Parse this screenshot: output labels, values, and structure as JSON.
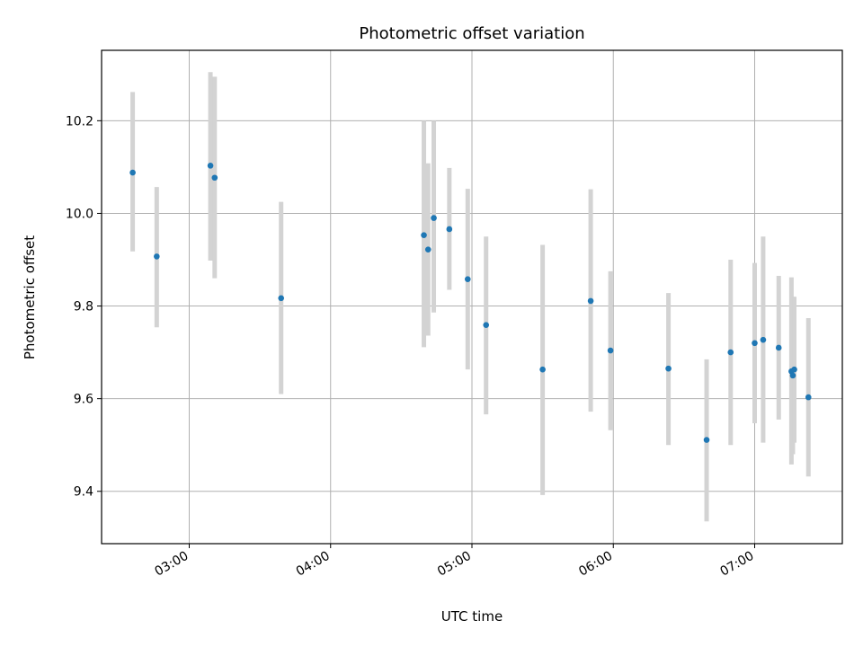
{
  "chart_data": {
    "type": "scatter",
    "title": "Photometric offset variation",
    "xlabel": "UTC time",
    "ylabel": "Photometric offset",
    "x_unit": "hours (UTC)",
    "xlim": [
      2.38,
      7.62
    ],
    "ylim": [
      9.287,
      10.352
    ],
    "xticks": [
      {
        "value": 3,
        "label": "03:00"
      },
      {
        "value": 4,
        "label": "04:00"
      },
      {
        "value": 5,
        "label": "05:00"
      },
      {
        "value": 6,
        "label": "06:00"
      },
      {
        "value": 7,
        "label": "07:00"
      }
    ],
    "yticks": [
      {
        "value": 9.4,
        "label": "9.4"
      },
      {
        "value": 9.6,
        "label": "9.6"
      },
      {
        "value": 9.8,
        "label": "9.8"
      },
      {
        "value": 10.0,
        "label": "10.0"
      },
      {
        "value": 10.2,
        "label": "10.2"
      }
    ],
    "grid": true,
    "colors": {
      "points": "#1f77b4",
      "errorbars": "#d3d3d3",
      "grid": "#b0b0b0"
    },
    "points": [
      {
        "x": 2.6,
        "y": 10.088,
        "ylow": 9.918,
        "yhigh": 10.262
      },
      {
        "x": 2.77,
        "y": 9.907,
        "ylow": 9.754,
        "yhigh": 10.057
      },
      {
        "x": 3.15,
        "y": 10.103,
        "ylow": 9.898,
        "yhigh": 10.305
      },
      {
        "x": 3.18,
        "y": 10.077,
        "ylow": 9.86,
        "yhigh": 10.295
      },
      {
        "x": 3.65,
        "y": 9.817,
        "ylow": 9.61,
        "yhigh": 10.025
      },
      {
        "x": 4.66,
        "y": 9.953,
        "ylow": 9.711,
        "yhigh": 10.2
      },
      {
        "x": 4.69,
        "y": 9.922,
        "ylow": 9.736,
        "yhigh": 10.108
      },
      {
        "x": 4.73,
        "y": 9.99,
        "ylow": 9.786,
        "yhigh": 10.2
      },
      {
        "x": 4.84,
        "y": 9.966,
        "ylow": 9.835,
        "yhigh": 10.098
      },
      {
        "x": 4.97,
        "y": 9.858,
        "ylow": 9.663,
        "yhigh": 10.053
      },
      {
        "x": 5.1,
        "y": 9.759,
        "ylow": 9.566,
        "yhigh": 9.95
      },
      {
        "x": 5.5,
        "y": 9.663,
        "ylow": 9.392,
        "yhigh": 9.932
      },
      {
        "x": 5.84,
        "y": 9.811,
        "ylow": 9.572,
        "yhigh": 10.052
      },
      {
        "x": 5.98,
        "y": 9.704,
        "ylow": 9.532,
        "yhigh": 9.875
      },
      {
        "x": 6.39,
        "y": 9.665,
        "ylow": 9.5,
        "yhigh": 9.828
      },
      {
        "x": 6.66,
        "y": 9.511,
        "ylow": 9.335,
        "yhigh": 9.685
      },
      {
        "x": 6.83,
        "y": 9.7,
        "ylow": 9.5,
        "yhigh": 9.9
      },
      {
        "x": 7.0,
        "y": 9.72,
        "ylow": 9.547,
        "yhigh": 9.893
      },
      {
        "x": 7.06,
        "y": 9.727,
        "ylow": 9.505,
        "yhigh": 9.95
      },
      {
        "x": 7.17,
        "y": 9.71,
        "ylow": 9.555,
        "yhigh": 9.865
      },
      {
        "x": 7.26,
        "y": 9.659,
        "ylow": 9.458,
        "yhigh": 9.862
      },
      {
        "x": 7.27,
        "y": 9.65,
        "ylow": 9.48,
        "yhigh": 9.82
      },
      {
        "x": 7.28,
        "y": 9.663,
        "ylow": 9.505,
        "yhigh": 9.82
      },
      {
        "x": 7.38,
        "y": 9.603,
        "ylow": 9.432,
        "yhigh": 9.774
      }
    ]
  }
}
